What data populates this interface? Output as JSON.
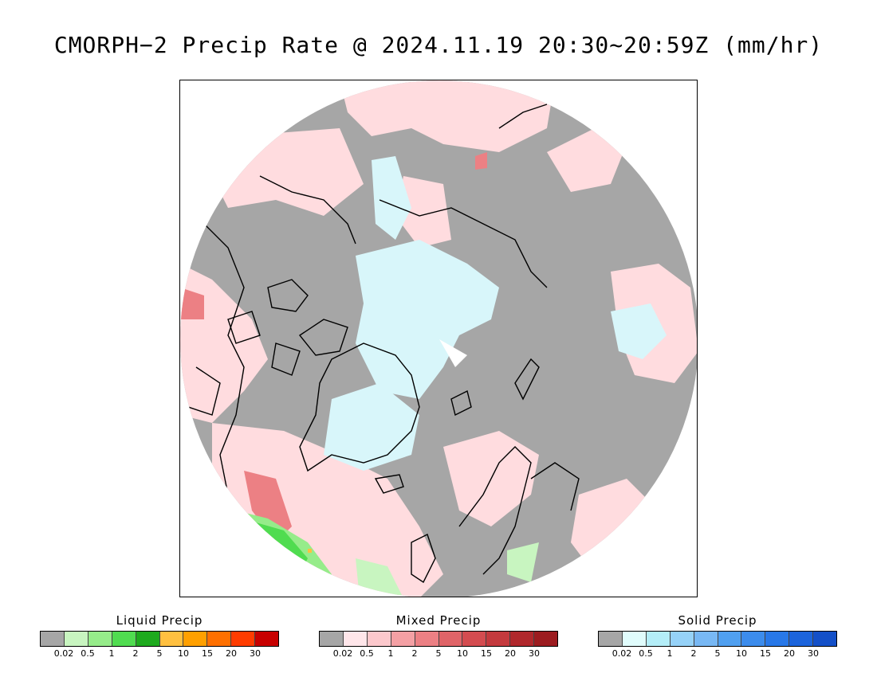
{
  "title": "CMORPH−2 Precip Rate @ 2024.11.19 20:30~20:59Z (mm/hr)",
  "map": {
    "projection": "north-polar-stereographic",
    "colors": {
      "no_precip": "#a6a6a6",
      "ocean_background": "#ffffff",
      "coastline": "#000000"
    }
  },
  "legends": [
    {
      "title": "Liquid Precip",
      "colors": [
        "#a6a6a6",
        "#c8f5c0",
        "#96ec8a",
        "#50dc50",
        "#1eaa1e",
        "#ffc040",
        "#ffa000",
        "#ff7000",
        "#ff3c00",
        "#c80000"
      ],
      "ticks": [
        "0.02",
        "0.5",
        "1",
        "2",
        "5",
        "10",
        "15",
        "20",
        "30"
      ]
    },
    {
      "title": "Mixed Precip",
      "colors": [
        "#a6a6a6",
        "#ffe6ea",
        "#fcc8cc",
        "#f4a0a4",
        "#ec8084",
        "#e06468",
        "#d44c50",
        "#c43a3e",
        "#b0282c",
        "#9c1c20"
      ],
      "ticks": [
        "0.02",
        "0.5",
        "1",
        "2",
        "5",
        "10",
        "15",
        "20",
        "30"
      ]
    },
    {
      "title": "Solid Precip",
      "colors": [
        "#a6a6a6",
        "#e0fcfc",
        "#b4eef8",
        "#96d2f8",
        "#78b8f4",
        "#50a0f0",
        "#3c8cec",
        "#2878e8",
        "#1c64dc",
        "#1450c8"
      ],
      "ticks": [
        "0.02",
        "0.5",
        "1",
        "2",
        "5",
        "10",
        "15",
        "20",
        "30"
      ]
    }
  ]
}
